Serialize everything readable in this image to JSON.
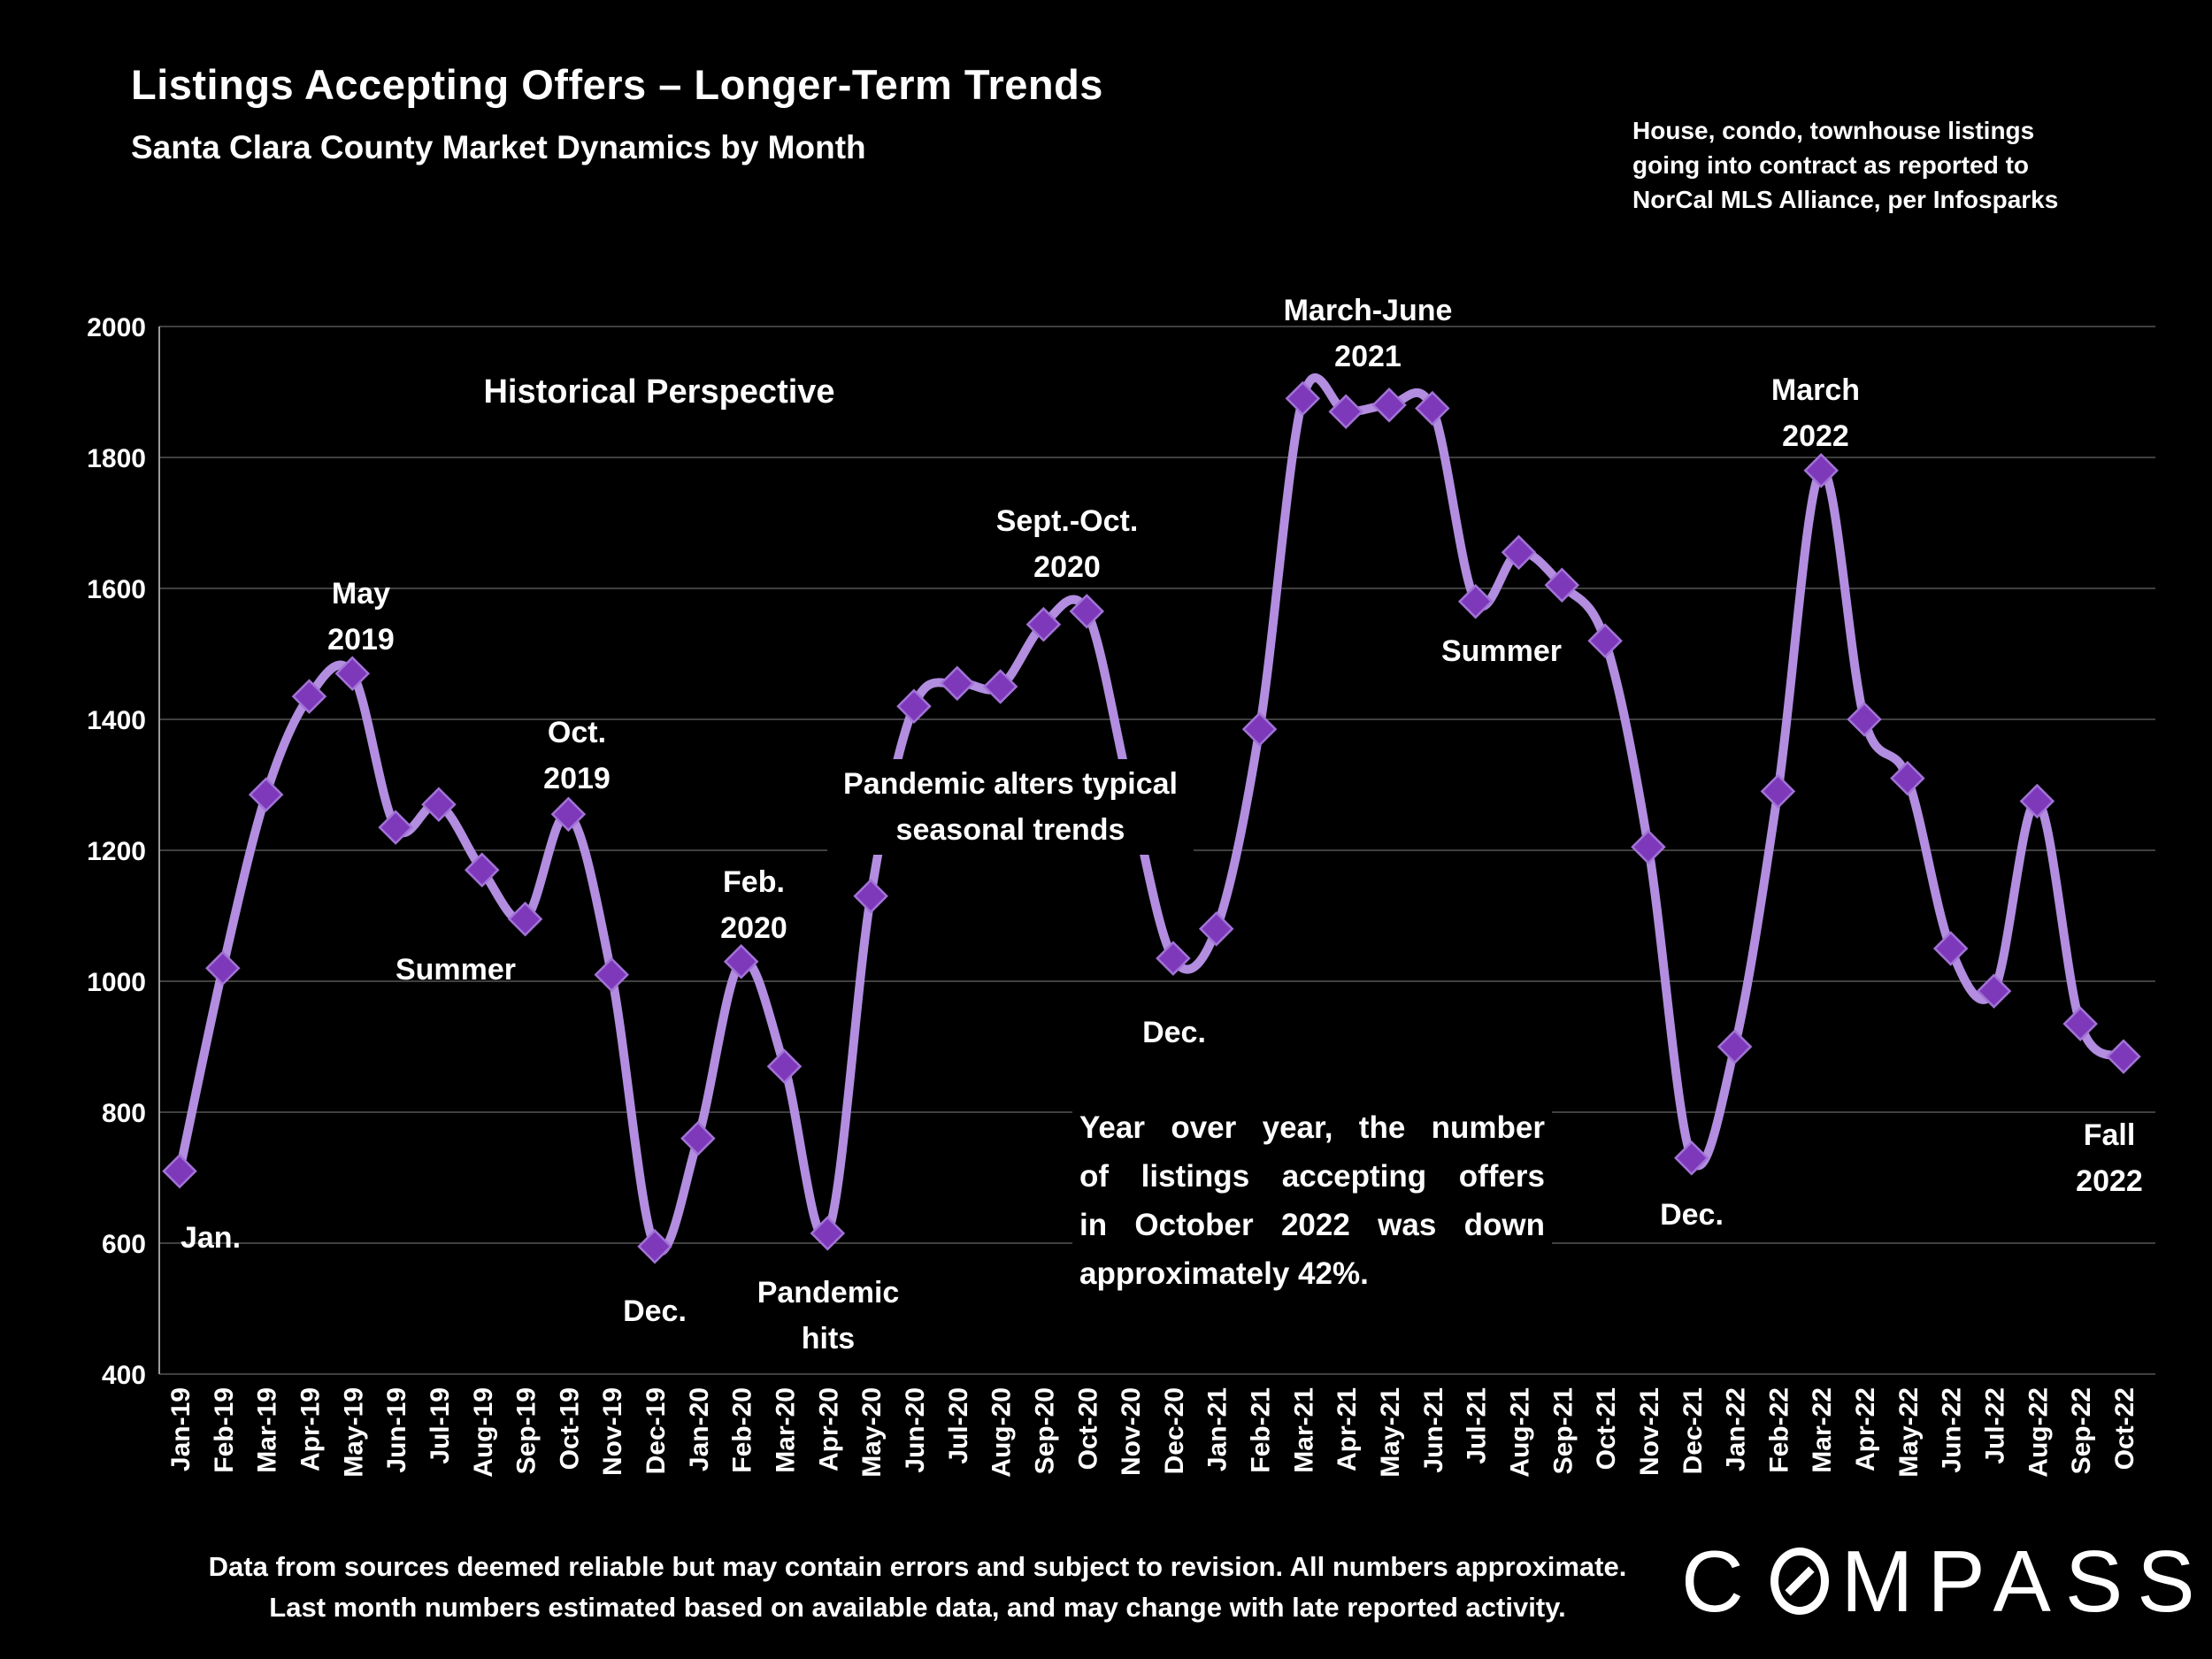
{
  "header": {
    "title": "Listings Accepting Offers – Longer-Term Trends",
    "subtitle": "Santa Clara County Market Dynamics by Month",
    "source_note": "House, condo, townhouse listings\ngoing into contract as reported to\nNorCal MLS Alliance, per Infosparks"
  },
  "chart_data": {
    "type": "line",
    "title": "Listings Accepting Offers by Month",
    "series_name": "Listings accepting offers",
    "categories": [
      "Jan-19",
      "Feb-19",
      "Mar-19",
      "Apr-19",
      "May-19",
      "Jun-19",
      "Jul-19",
      "Aug-19",
      "Sep-19",
      "Oct-19",
      "Nov-19",
      "Dec-19",
      "Jan-20",
      "Feb-20",
      "Mar-20",
      "Apr-20",
      "May-20",
      "Jun-20",
      "Jul-20",
      "Aug-20",
      "Sep-20",
      "Oct-20",
      "Nov-20",
      "Dec-20",
      "Jan-21",
      "Feb-21",
      "Mar-21",
      "Apr-21",
      "May-21",
      "Jun-21",
      "Jul-21",
      "Aug-21",
      "Sep-21",
      "Oct-21",
      "Nov-21",
      "Dec-21",
      "Jan-22",
      "Feb-22",
      "Mar-22",
      "Apr-22",
      "May-22",
      "Jun-22",
      "Jul-22",
      "Aug-22",
      "Sep-22",
      "Oct-22"
    ],
    "values": [
      710,
      1020,
      1285,
      1435,
      1470,
      1235,
      1270,
      1170,
      1095,
      1255,
      1010,
      595,
      760,
      1030,
      870,
      615,
      1130,
      1420,
      1455,
      1450,
      1545,
      1565,
      1290,
      1035,
      1080,
      1385,
      1890,
      1870,
      1880,
      1875,
      1580,
      1655,
      1605,
      1520,
      1205,
      730,
      900,
      1290,
      1780,
      1400,
      1310,
      1050,
      985,
      1275,
      935,
      885
    ],
    "ylim": [
      400,
      2000
    ],
    "yticks": [
      2000,
      1800,
      1600,
      1400,
      1200,
      1000,
      800,
      600,
      400
    ],
    "grid": true,
    "legend": "none",
    "line_color": "#b28de0",
    "marker_color": "#7e39bb",
    "marker_edge_color": "#a273d6",
    "annotations": {
      "historical": "Historical Perspective",
      "jan2019": "Jan.",
      "may2019": "May\n2019",
      "summer2019": "Summer",
      "oct2019": "Oct.\n2019",
      "dec2019": "Dec.",
      "feb2020": "Feb.\n2020",
      "pandemic_hits": "Pandemic\nhits",
      "septoct2020": "Sept.-Oct.\n2020",
      "pandemic_alters": "Pandemic alters typical\nseasonal trends",
      "dec2020": "Dec.",
      "marchjune2021": "March-June\n2021",
      "summer2021": "Summer",
      "dec2021": "Dec.",
      "march2022": "March\n2022",
      "fall2022": "Fall\n2022"
    }
  },
  "callout": {
    "lines": [
      "Year over year, the number",
      "of listings accepting offers",
      "in October 2022 was down",
      "approximately 42%."
    ]
  },
  "footer": {
    "line1": "Data from sources deemed reliable but may contain errors and subject to revision. All numbers approximate.",
    "line2": "Last month numbers estimated based on available data, and may change with late reported activity."
  },
  "logo": {
    "part1": "C",
    "part2": "MPASS"
  }
}
